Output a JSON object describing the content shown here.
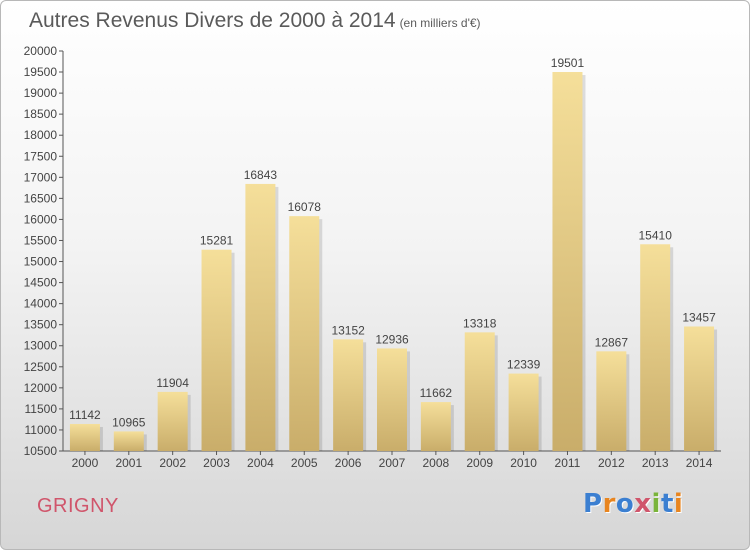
{
  "title": "Autres Revenus Divers de 2000 à 2014",
  "unit": "(en milliers d'€)",
  "place": "GRIGNY",
  "brand": "Proxiti",
  "colors": {
    "bar_light": "#f5df9a",
    "bar_dark": "#c9ad6a",
    "place": "#d0556b"
  },
  "chart_data": {
    "type": "bar",
    "categories": [
      "2000",
      "2001",
      "2002",
      "2003",
      "2004",
      "2005",
      "2006",
      "2007",
      "2008",
      "2009",
      "2010",
      "2011",
      "2012",
      "2013",
      "2014"
    ],
    "values": [
      11142,
      10965,
      11904,
      15281,
      16843,
      16078,
      13152,
      12936,
      11662,
      13318,
      12339,
      19501,
      12867,
      15410,
      13457
    ],
    "ylim": [
      10500,
      20000
    ],
    "yticks": [
      10500,
      11000,
      11500,
      12000,
      12500,
      13000,
      13500,
      14000,
      14500,
      15000,
      15500,
      16000,
      16500,
      17000,
      17500,
      18000,
      18500,
      19000,
      19500,
      20000
    ],
    "grid": false
  }
}
